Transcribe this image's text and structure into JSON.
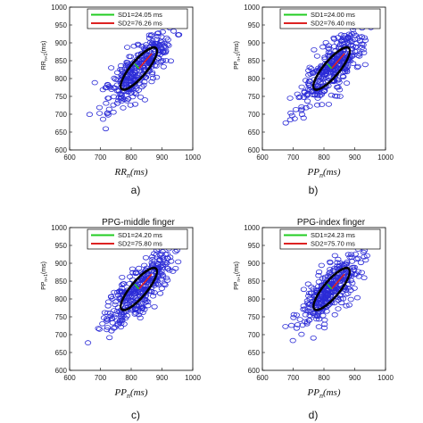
{
  "chart_data": [
    {
      "type": "scatter",
      "title": "",
      "caption": "a)",
      "xlabel_base": "RR",
      "xlabel_sub": "n",
      "xlabel_unit": "(ms)",
      "ylabel": "RR",
      "ylabel_sub": "n+1",
      "ylabel_unit": "(ms)",
      "xlim": [
        600,
        1000
      ],
      "ylim": [
        600,
        1000
      ],
      "xticks": [
        "600",
        "700",
        "800",
        "900",
        "1000"
      ],
      "yticks": [
        "600",
        "650",
        "700",
        "750",
        "800",
        "850",
        "900",
        "950",
        "1000"
      ],
      "legend": [
        "SD1=24.05 ms",
        "SD2=76.26 ms"
      ],
      "sd1": 24.05,
      "sd2": 76.26,
      "center": [
        825,
        828
      ],
      "seed": 11
    },
    {
      "type": "scatter",
      "title": "",
      "caption": "b)",
      "xlabel_base": "PP",
      "xlabel_sub": "n",
      "xlabel_unit": "(ms)",
      "ylabel": "PP",
      "ylabel_sub": "n+1",
      "ylabel_unit": "(ms)",
      "xlim": [
        600,
        1000
      ],
      "ylim": [
        600,
        1000
      ],
      "xticks": [
        "600",
        "700",
        "800",
        "900",
        "1000"
      ],
      "yticks": [
        "600",
        "650",
        "700",
        "750",
        "800",
        "850",
        "900",
        "950",
        "1000"
      ],
      "legend": [
        "SD1=24.00 ms",
        "SD2=76.40 ms"
      ],
      "sd1": 24.0,
      "sd2": 76.4,
      "center": [
        825,
        828
      ],
      "seed": 23
    },
    {
      "type": "scatter",
      "title": "PPG-middle finger",
      "caption": "c)",
      "xlabel_base": "PP",
      "xlabel_sub": "n",
      "xlabel_unit": "(ms)",
      "ylabel": "PP",
      "ylabel_sub": "n+1",
      "ylabel_unit": "(ms)",
      "xlim": [
        600,
        1000
      ],
      "ylim": [
        600,
        1000
      ],
      "xticks": [
        "600",
        "700",
        "800",
        "900",
        "1000"
      ],
      "yticks": [
        "600",
        "650",
        "700",
        "750",
        "800",
        "850",
        "900",
        "950",
        "1000"
      ],
      "legend": [
        "SD1=24.20 ms",
        "SD2=75.80 ms"
      ],
      "sd1": 24.2,
      "sd2": 75.8,
      "center": [
        825,
        828
      ],
      "seed": 37
    },
    {
      "type": "scatter",
      "title": "PPG-index finger",
      "caption": "d)",
      "xlabel_base": "PP",
      "xlabel_sub": "n",
      "xlabel_unit": "(ms)",
      "ylabel": "PP",
      "ylabel_sub": "n+1",
      "ylabel_unit": "(ms)",
      "xlim": [
        600,
        1000
      ],
      "ylim": [
        600,
        1000
      ],
      "xticks": [
        "600",
        "700",
        "800",
        "900",
        "1000"
      ],
      "yticks": [
        "600",
        "650",
        "700",
        "750",
        "800",
        "850",
        "900",
        "950",
        "1000"
      ],
      "legend": [
        "SD1=24.23 ms",
        "SD2=75.70 ms"
      ],
      "sd1": 24.23,
      "sd2": 75.7,
      "center": [
        825,
        828
      ],
      "seed": 53
    }
  ],
  "colors": {
    "points": "#2b2bd6",
    "ellipse": "#000000",
    "sd1": "#22cc22",
    "sd2": "#dd2222",
    "axis": "#000000"
  }
}
